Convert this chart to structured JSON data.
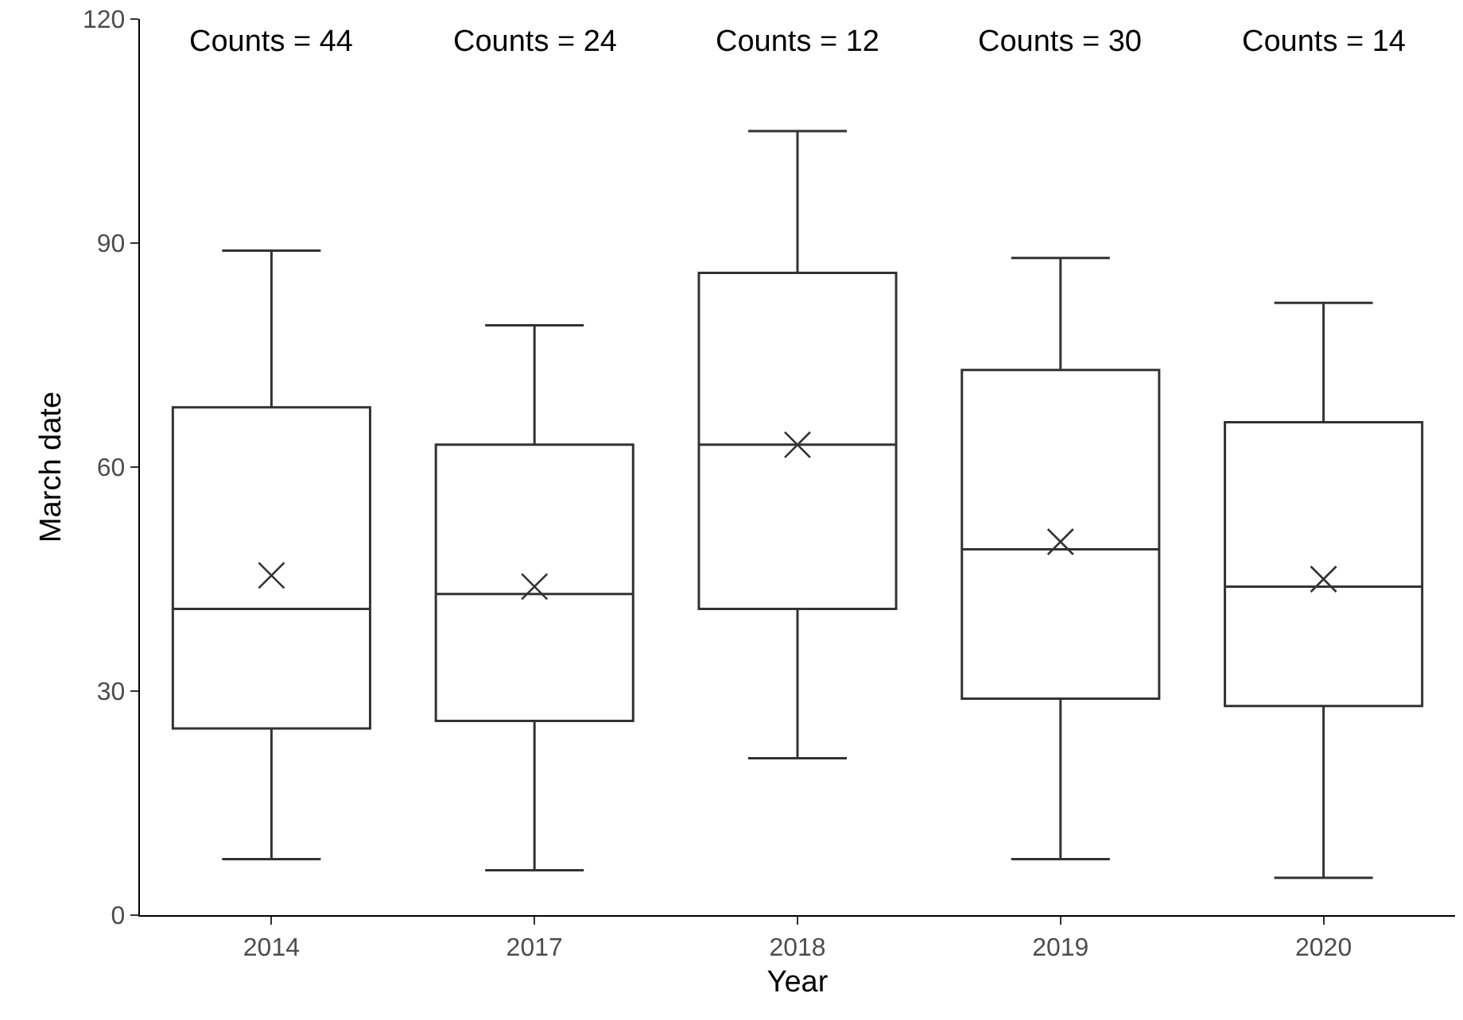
{
  "chart_data": {
    "type": "box",
    "xlabel": "Year",
    "ylabel": "March date",
    "categories": [
      "2014",
      "2017",
      "2018",
      "2019",
      "2020"
    ],
    "boxes": [
      {
        "low": 7.5,
        "q1": 25,
        "median": 41,
        "q3": 68,
        "high": 89,
        "mean": 45.5
      },
      {
        "low": 6,
        "q1": 26,
        "median": 43,
        "q3": 63,
        "high": 79,
        "mean": 44
      },
      {
        "low": 21,
        "q1": 41,
        "median": 63,
        "q3": 86,
        "high": 105,
        "mean": 63
      },
      {
        "low": 7.5,
        "q1": 29,
        "median": 49,
        "q3": 73,
        "high": 88,
        "mean": 50
      },
      {
        "low": 5,
        "q1": 28,
        "median": 44,
        "q3": 66,
        "high": 82,
        "mean": 45
      }
    ],
    "color": "#333333",
    "marker": "cross",
    "ylim": [
      0,
      120
    ],
    "yticks": [
      0,
      30,
      60,
      90,
      120
    ],
    "grid": false,
    "annotations": [
      "Counts = 44",
      "Counts = 24",
      "Counts = 12",
      "Counts = 30",
      "Counts = 14"
    ]
  }
}
